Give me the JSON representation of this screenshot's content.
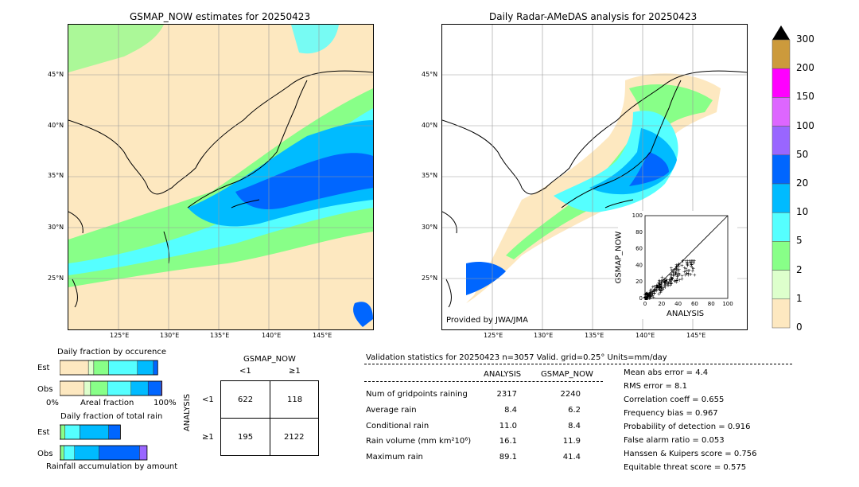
{
  "left_map": {
    "title": "GSMAP_NOW estimates for 20250423",
    "lat_labels": [
      "45°N",
      "40°N",
      "35°N",
      "30°N",
      "25°N"
    ],
    "lon_labels": [
      "125°E",
      "130°E",
      "135°E",
      "140°E",
      "145°E"
    ]
  },
  "right_map": {
    "title": "Daily Radar-AMeDAS analysis for 20250423",
    "lat_labels": [
      "45°N",
      "40°N",
      "35°N",
      "30°N",
      "25°N"
    ],
    "lon_labels": [
      "125°E",
      "130°E",
      "135°E",
      "140°E",
      "145°E"
    ],
    "credit": "Provided by JWA/JMA"
  },
  "colorbar": {
    "ticks": [
      "300",
      "200",
      "150",
      "100",
      "50",
      "20",
      "10",
      "5",
      "2",
      "1",
      "0"
    ],
    "colors": [
      "#cc9a3c",
      "#ff00ff",
      "#dd66ff",
      "#9966ff",
      "#0066ff",
      "#00bbff",
      "#55ffff",
      "#88ff88",
      "#ddffcc",
      "#fde8c0"
    ]
  },
  "occurrence": {
    "title": "Daily fraction by occurence",
    "rows": [
      "Est",
      "Obs"
    ],
    "axis_left": "0%",
    "axis_mid": "Areal fraction",
    "axis_right": "100%"
  },
  "total_rain": {
    "title": "Daily fraction of total rain",
    "rows": [
      "Est",
      "Obs"
    ],
    "footer": "Rainfall accumulation by amount"
  },
  "contingency": {
    "title": "GSMAP_NOW",
    "col_labels": [
      "<1",
      "≥1"
    ],
    "row_axis": "ANALYSIS",
    "row_labels": [
      "<1",
      "≥1"
    ],
    "cells": [
      [
        "622",
        "118"
      ],
      [
        "195",
        "2122"
      ]
    ]
  },
  "validation": {
    "header": "Validation statistics for 20250423  n=3057 Valid. grid=0.25° Units=mm/day",
    "col_analysis": "ANALYSIS",
    "col_gsmap": "GSMAP_NOW",
    "rows": [
      {
        "label": "Num of gridpoints raining",
        "analysis": "2317",
        "gsmap": "2240"
      },
      {
        "label": "Average rain",
        "analysis": "8.4",
        "gsmap": "6.2"
      },
      {
        "label": "Conditional rain",
        "analysis": "11.0",
        "gsmap": "8.4"
      },
      {
        "label": "Rain volume (mm km²10⁶)",
        "analysis": "16.1",
        "gsmap": "11.9"
      },
      {
        "label": "Maximum rain",
        "analysis": "89.1",
        "gsmap": "41.4"
      }
    ],
    "scores": [
      "Mean abs error =    4.4",
      "RMS error =    8.1",
      "Correlation coeff =  0.655",
      "Frequency bias =  0.967",
      "Probability of detection =  0.916",
      "False alarm ratio =  0.053",
      "Hanssen & Kuipers score =  0.756",
      "Equitable threat score =  0.575"
    ]
  },
  "chart_data": [
    {
      "type": "bar",
      "title": "Daily fraction by occurence",
      "categories": [
        "Est",
        "Obs"
      ],
      "xlabel": "Areal fraction",
      "series": [
        {
          "color": "#fde8c0",
          "values": [
            0.27,
            0.23
          ]
        },
        {
          "color": "#ddffcc",
          "values": [
            0.05,
            0.06
          ]
        },
        {
          "color": "#88ff88",
          "values": [
            0.14,
            0.16
          ]
        },
        {
          "color": "#55ffff",
          "values": [
            0.27,
            0.22
          ]
        },
        {
          "color": "#00bbff",
          "values": [
            0.15,
            0.16
          ]
        },
        {
          "color": "#0066ff",
          "values": [
            0.04,
            0.12
          ]
        },
        {
          "color": "#9966ff",
          "values": [
            0.0,
            0.01
          ]
        }
      ]
    },
    {
      "type": "bar",
      "title": "Daily fraction of total rain",
      "categories": [
        "Est",
        "Obs"
      ],
      "xlabel": "Rainfall accumulation by amount",
      "series": [
        {
          "color": "#ddffcc",
          "values": [
            0.01,
            0.01
          ]
        },
        {
          "color": "#88ff88",
          "values": [
            0.04,
            0.03
          ]
        },
        {
          "color": "#55ffff",
          "values": [
            0.14,
            0.1
          ]
        },
        {
          "color": "#00bbff",
          "values": [
            0.27,
            0.23
          ]
        },
        {
          "color": "#0066ff",
          "values": [
            0.11,
            0.38
          ]
        },
        {
          "color": "#9966ff",
          "values": [
            0.0,
            0.07
          ]
        }
      ]
    },
    {
      "type": "scatter",
      "xlabel": "ANALYSIS",
      "ylabel": "GSMAP_NOW",
      "xlim": [
        0,
        100
      ],
      "ylim": [
        0,
        100
      ],
      "xticks": [
        "0",
        "20",
        "40",
        "60",
        "80",
        "100"
      ],
      "yticks": [
        "0",
        "20",
        "40",
        "60",
        "80",
        "100"
      ]
    }
  ]
}
